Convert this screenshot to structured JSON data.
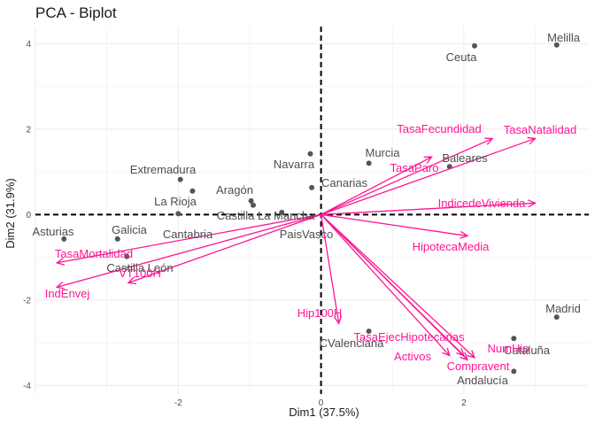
{
  "chart_data": {
    "type": "scatter",
    "subtype": "pca-biplot",
    "title": "PCA - Biplot",
    "xlabel": "Dim1 (37.5%)",
    "ylabel": "Dim2 (31.9%)",
    "xlim": [
      -4.0,
      3.75
    ],
    "ylim": [
      -4.2,
      4.4
    ],
    "xticks": [
      -2,
      0,
      2
    ],
    "yticks": [
      -4,
      -2,
      0,
      2,
      4
    ],
    "grid": true,
    "reference_lines": {
      "x": 0,
      "y": 0,
      "style": "dashed"
    },
    "point_color": "#555555",
    "arrow_color": "#ff1493",
    "points": [
      {
        "name": "Melilla",
        "x": 3.3,
        "y": 3.97
      },
      {
        "name": "Ceuta",
        "x": 2.15,
        "y": 3.95
      },
      {
        "name": "Baleares",
        "x": 1.8,
        "y": 1.12
      },
      {
        "name": "Murcia",
        "x": 0.67,
        "y": 1.2
      },
      {
        "name": "Navarra",
        "x": -0.15,
        "y": 1.42
      },
      {
        "name": "Canarias",
        "x": -0.13,
        "y": 0.63
      },
      {
        "name": "Extremadura",
        "x": -1.97,
        "y": 0.82
      },
      {
        "name": "Aragón",
        "x": -0.98,
        "y": 0.32
      },
      {
        "name": "La Rioja",
        "x": -2.0,
        "y": 0.02
      },
      {
        "name": "Cantabria",
        "x": -1.8,
        "y": 0.55
      },
      {
        "name": "Castilla La Mancha",
        "x": -0.95,
        "y": 0.22
      },
      {
        "name": "PaisVasco",
        "x": -0.55,
        "y": 0.05
      },
      {
        "name": "Asturias",
        "x": -3.6,
        "y": -0.57
      },
      {
        "name": "Galicia",
        "x": -2.85,
        "y": -0.57
      },
      {
        "name": "Castilla León",
        "x": -2.72,
        "y": -0.98
      },
      {
        "name": "Madrid",
        "x": 3.3,
        "y": -2.4
      },
      {
        "name": "Cataluña",
        "x": 2.7,
        "y": -2.9
      },
      {
        "name": "Andalucía",
        "x": 2.7,
        "y": -3.67
      },
      {
        "name": "CValenciana",
        "x": 0.67,
        "y": -2.73
      }
    ],
    "variables": [
      {
        "name": "TasaNatalidad",
        "x": 3.0,
        "y": 1.78
      },
      {
        "name": "TasaFecundidad",
        "x": 2.4,
        "y": 1.78
      },
      {
        "name": "TasaParo",
        "x": 1.55,
        "y": 1.35
      },
      {
        "name": "IndicedeVivienda",
        "x": 3.0,
        "y": 0.27
      },
      {
        "name": "HipotecaMedia",
        "x": 2.05,
        "y": -0.5
      },
      {
        "name": "Hip100H",
        "x": 0.25,
        "y": -2.55
      },
      {
        "name": "TasaEjecHipotecarias",
        "x": 2.0,
        "y": -3.3
      },
      {
        "name": "Activos",
        "x": 1.8,
        "y": -3.3
      },
      {
        "name": "NumHip",
        "x": 2.15,
        "y": -3.35
      },
      {
        "name": "Compravent",
        "x": 2.05,
        "y": -3.4
      },
      {
        "name": "TasaMortalidad",
        "x": -3.7,
        "y": -1.13
      },
      {
        "name": "VT100H",
        "x": -2.7,
        "y": -1.6
      },
      {
        "name": "IndEnvej",
        "x": -3.7,
        "y": -1.7
      }
    ]
  }
}
